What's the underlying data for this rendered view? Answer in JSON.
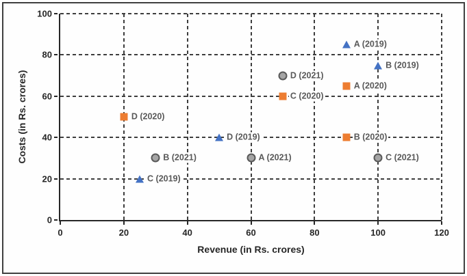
{
  "chart_data": {
    "type": "scatter",
    "title": "",
    "xlabel": "Revenue (in Rs. crores)",
    "ylabel": "Costs (in Rs. crores)",
    "xlim": [
      0,
      120
    ],
    "ylim": [
      0,
      100
    ],
    "x_ticks": [
      0,
      20,
      40,
      60,
      80,
      100,
      120
    ],
    "y_ticks": [
      0,
      20,
      40,
      60,
      80,
      100
    ],
    "grid": "dashed-both-axes",
    "legend_position": "none (points labeled inline)",
    "series": [
      {
        "name": "2019",
        "marker": "triangle",
        "color": "#4472C4",
        "points": [
          {
            "label": "A (2019)",
            "x": 90,
            "y": 85
          },
          {
            "label": "B (2019)",
            "x": 100,
            "y": 75
          },
          {
            "label": "C (2019)",
            "x": 25,
            "y": 20
          },
          {
            "label": "D (2019)",
            "x": 50,
            "y": 40
          }
        ]
      },
      {
        "name": "2020",
        "marker": "square",
        "color": "#ED7D31",
        "points": [
          {
            "label": "A (2020)",
            "x": 90,
            "y": 65
          },
          {
            "label": "B (2020)",
            "x": 90,
            "y": 40
          },
          {
            "label": "C (2020)",
            "x": 70,
            "y": 60
          },
          {
            "label": "D (2020)",
            "x": 20,
            "y": 50
          }
        ]
      },
      {
        "name": "2021",
        "marker": "circle",
        "color": "#A5A5A5",
        "border_color": "#595959",
        "points": [
          {
            "label": "A (2021)",
            "x": 60,
            "y": 30
          },
          {
            "label": "B (2021)",
            "x": 30,
            "y": 30
          },
          {
            "label": "C (2021)",
            "x": 100,
            "y": 30
          },
          {
            "label": "D (2021)",
            "x": 70,
            "y": 70
          }
        ]
      }
    ],
    "colors": {
      "grid": "#3d3d3d",
      "axis": "#262626",
      "tick_label": "#262626",
      "point_label": "#595959",
      "frame_border": "#3f3f3f",
      "background": "#fefefe"
    }
  }
}
